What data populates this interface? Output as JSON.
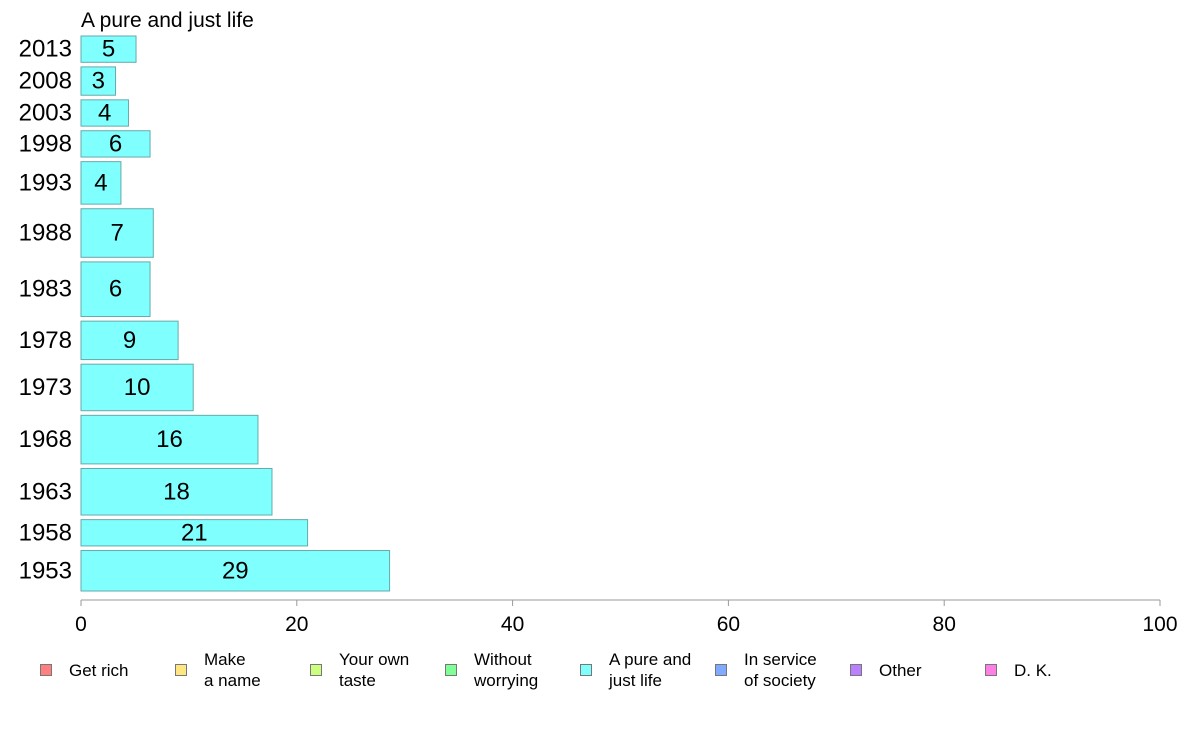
{
  "chart_data": {
    "type": "bar",
    "orientation": "horizontal",
    "title": "A pure and just life",
    "categories": [
      "1953",
      "1958",
      "1963",
      "1968",
      "1973",
      "1978",
      "1983",
      "1988",
      "1993",
      "1998",
      "2003",
      "2008",
      "2013"
    ],
    "values": [
      29,
      21,
      18,
      16,
      10,
      9,
      6,
      7,
      4,
      6,
      4,
      3,
      5
    ],
    "bar_values": [
      28.6,
      21.0,
      17.7,
      16.4,
      10.4,
      9.0,
      6.4,
      6.7,
      3.7,
      6.4,
      4.4,
      3.2,
      5.1
    ],
    "sample_weights": [
      2.0,
      1.3,
      2.3,
      2.4,
      2.3,
      1.9,
      2.7,
      2.4,
      2.1,
      1.3,
      1.3,
      1.4,
      1.3
    ],
    "xlim": [
      0,
      100
    ],
    "xticks": [
      "0",
      "20",
      "40",
      "60",
      "80",
      "100"
    ],
    "bar_color": "#80ffff",
    "bar_border_color": "#66aaaa",
    "axis_color": "#999999",
    "legend_position": "bottom",
    "legend": [
      {
        "label": "Get rich",
        "color": "#ff8080"
      },
      {
        "label": "Make\na name",
        "color": "#ffe680"
      },
      {
        "label": "Your own\ntaste",
        "color": "#ccff80"
      },
      {
        "label": "Without\nworrying",
        "color": "#80ff99"
      },
      {
        "label": "A pure and\njust life",
        "color": "#80ffff"
      },
      {
        "label": "In service\nof society",
        "color": "#80aaff"
      },
      {
        "label": "Other",
        "color": "#bb80ff"
      },
      {
        "label": "D. K.",
        "color": "#ff80e5"
      }
    ]
  }
}
